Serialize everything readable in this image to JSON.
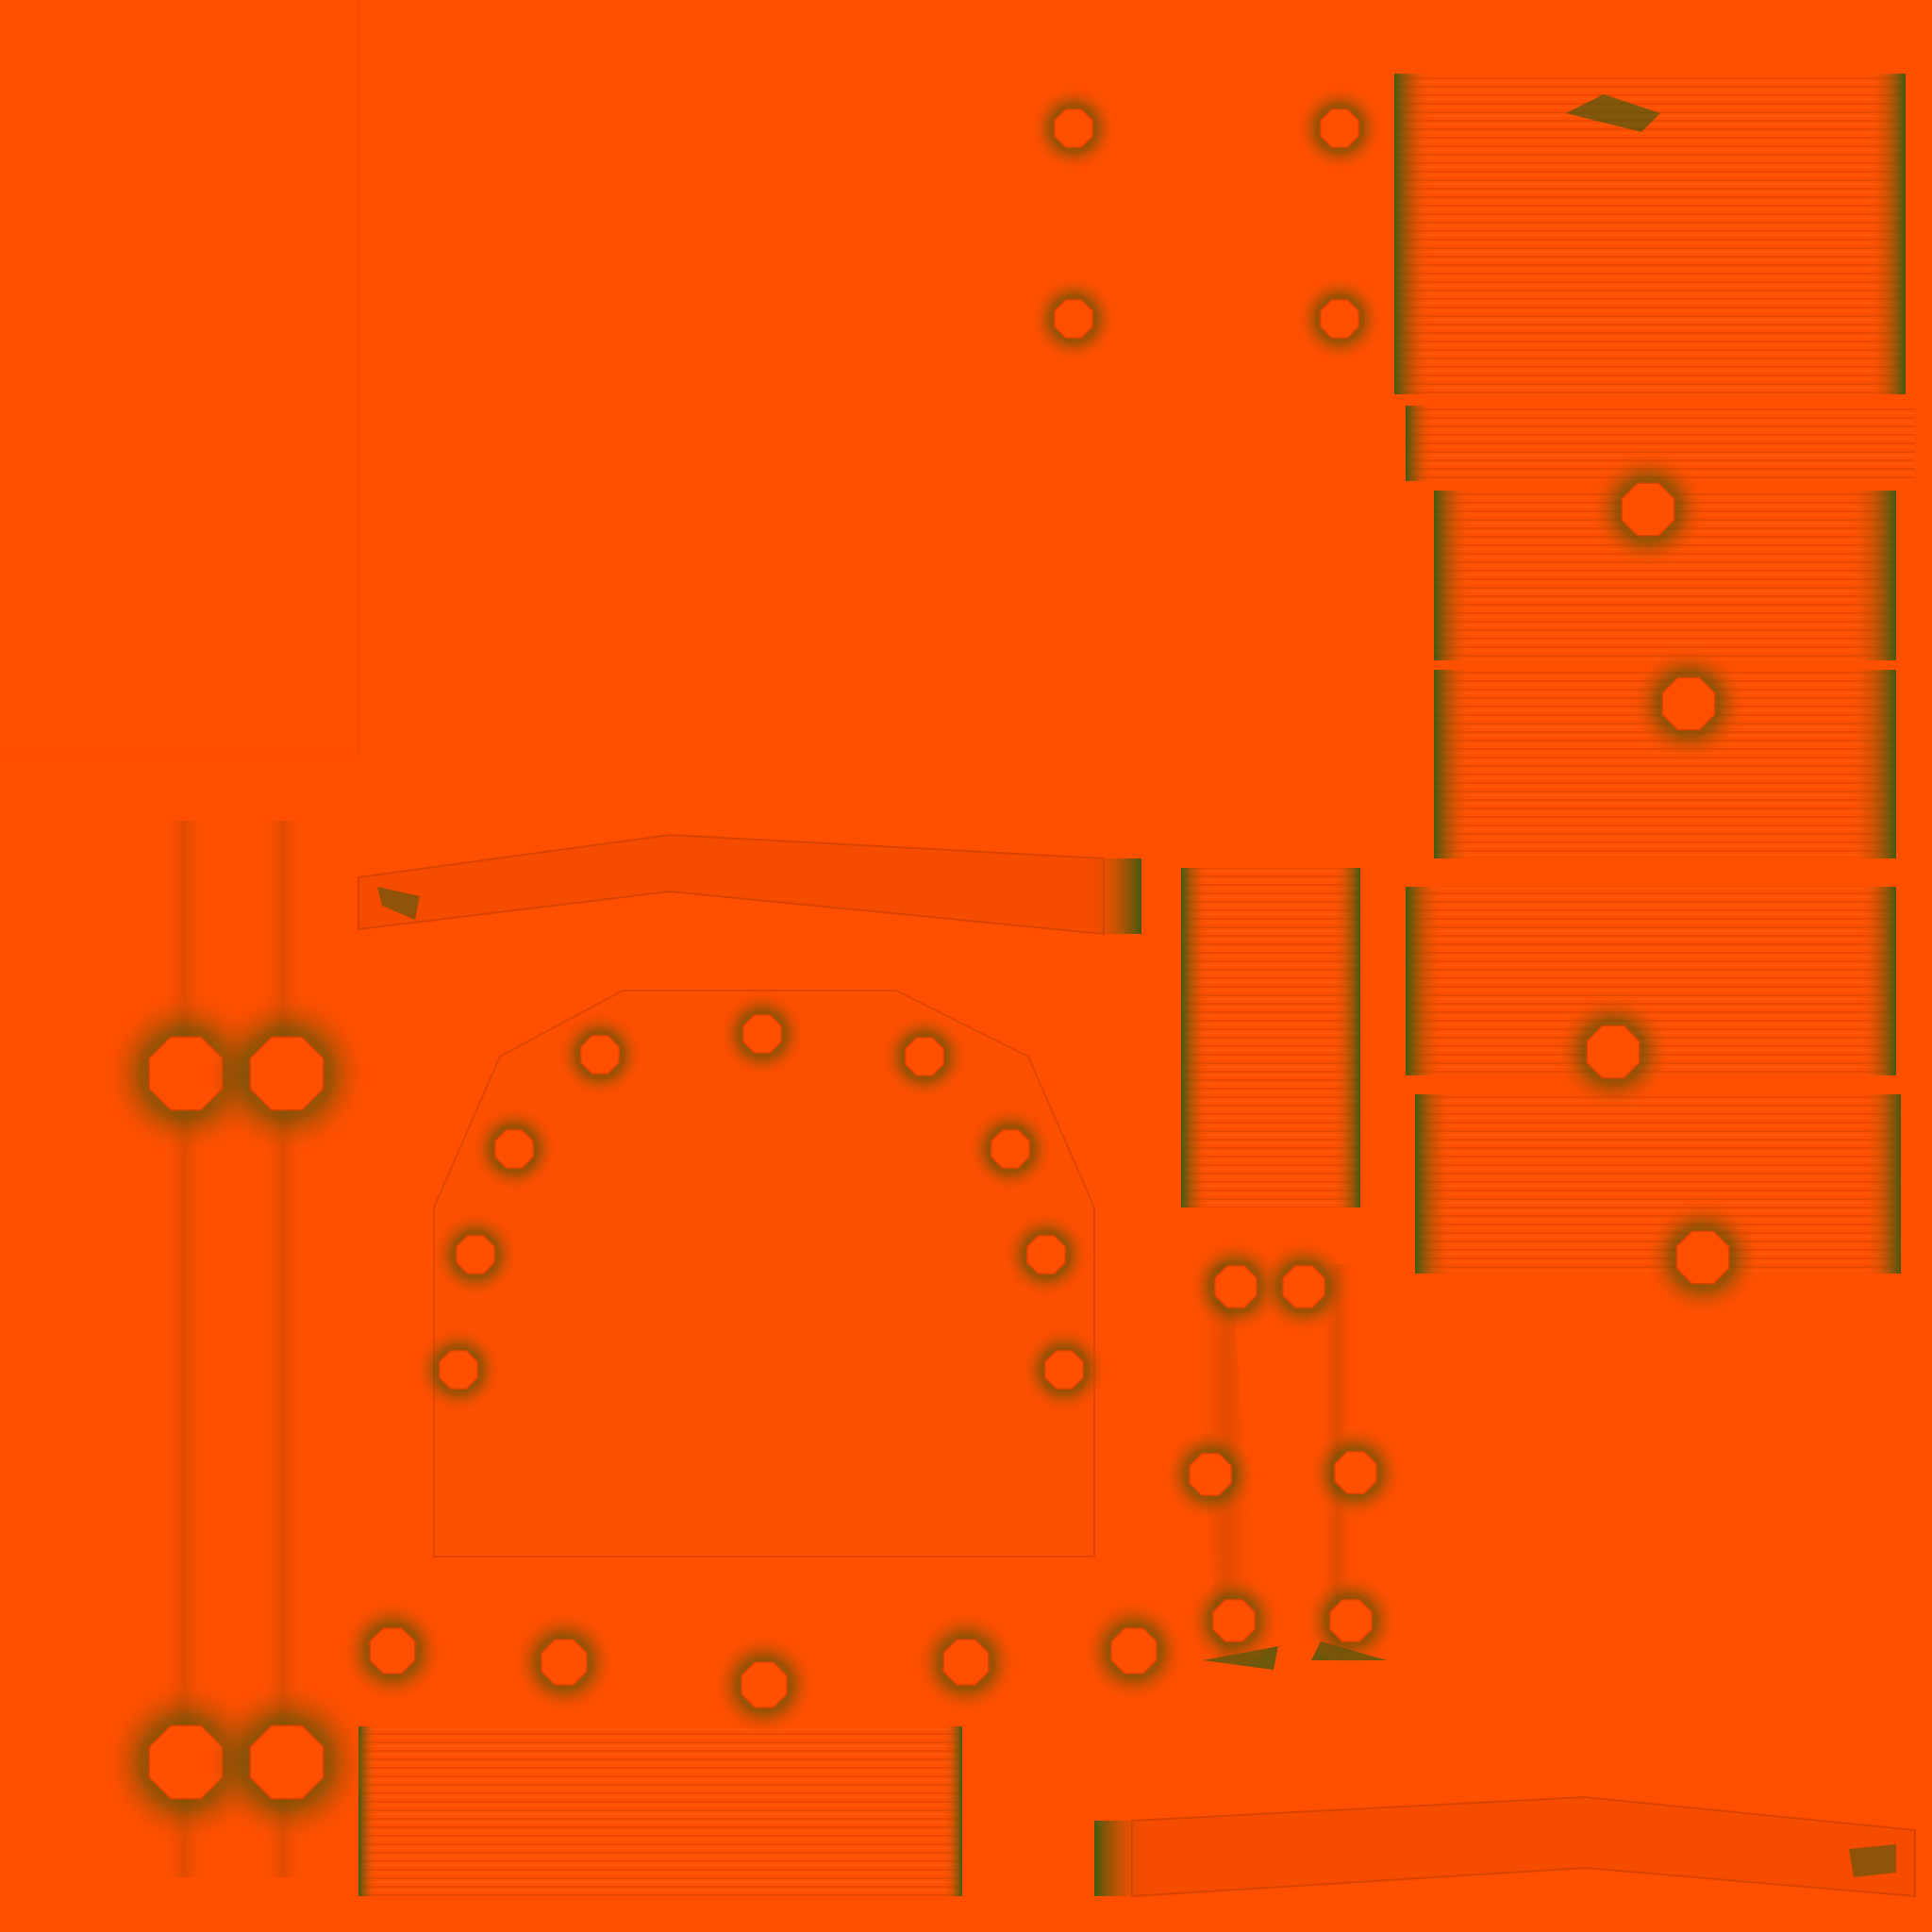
{
  "colors": {
    "base": "#fe5000",
    "ao_shadow": "#2e5a10",
    "edge_dark": "#d94300",
    "edge_light": "#ff6a1a"
  },
  "icons": {
    "bolt": "bolt-icon"
  }
}
